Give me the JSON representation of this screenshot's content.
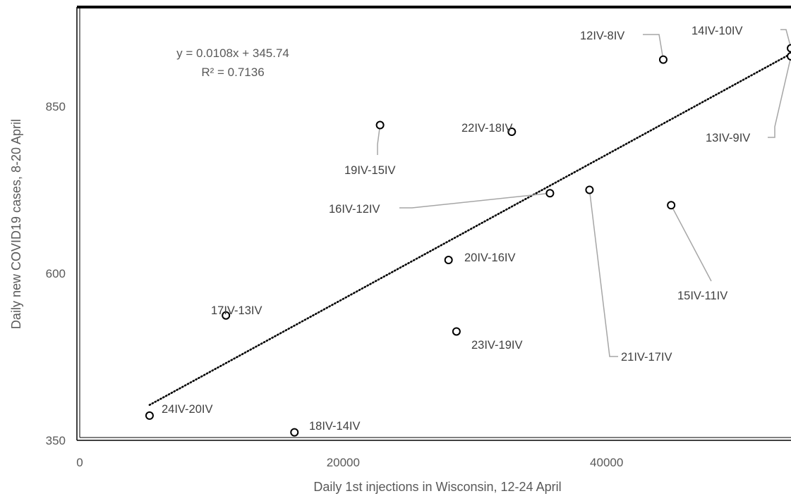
{
  "chart_data": {
    "type": "scatter",
    "xlabel": "Daily 1st injections in Wisconsin, 12-24 April",
    "ylabel": "Daily new COVID19 cases, 8-20 April",
    "xlim": [
      0,
      54000
    ],
    "ylim": [
      350,
      990
    ],
    "x_ticks": [
      0,
      20000,
      40000
    ],
    "y_ticks": [
      350,
      600,
      850
    ],
    "grid": false,
    "trendline": {
      "equation": "y = 0.0108x + 345.74",
      "r_squared": "R² = 0.7136",
      "slope": 0.0108,
      "intercept": 345.74,
      "x_from": 5300,
      "x_to": 54000
    },
    "points": [
      {
        "label": "12IV-8IV",
        "x": 44300,
        "y": 920
      },
      {
        "label": "14IV-10IV",
        "x": 54000,
        "y": 937
      },
      {
        "label": "13IV-9IV",
        "x": 54000,
        "y": 925
      },
      {
        "label": "19IV-15IV",
        "x": 22800,
        "y": 822
      },
      {
        "label": "22IV-18IV",
        "x": 32800,
        "y": 812
      },
      {
        "label": "16IV-12IV",
        "x": 35700,
        "y": 720
      },
      {
        "label": "21IV-17IV",
        "x": 38700,
        "y": 725
      },
      {
        "label": "15IV-11IV",
        "x": 44900,
        "y": 702
      },
      {
        "label": "20IV-16IV",
        "x": 28000,
        "y": 620
      },
      {
        "label": "17IV-13IV",
        "x": 11100,
        "y": 537
      },
      {
        "label": "23IV-19IV",
        "x": 28600,
        "y": 513
      },
      {
        "label": "24IV-20IV",
        "x": 5300,
        "y": 387
      },
      {
        "label": "18IV-14IV",
        "x": 16300,
        "y": 362
      }
    ]
  }
}
